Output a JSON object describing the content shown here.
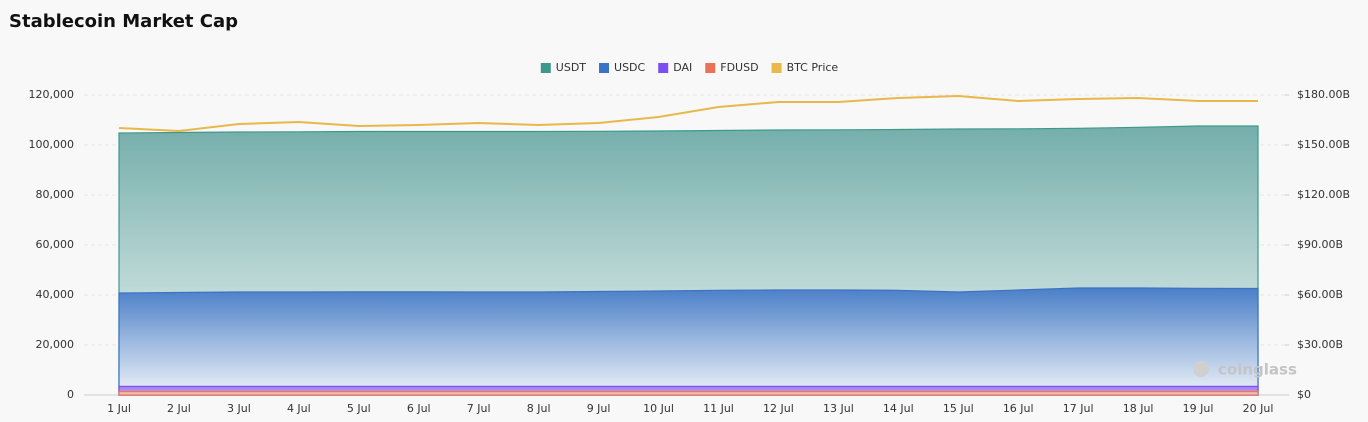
{
  "chart_data": {
    "type": "area",
    "title": "Stablecoin Market Cap",
    "watermark": "coinglass",
    "categories": [
      "1 Jul",
      "2 Jul",
      "3 Jul",
      "4 Jul",
      "5 Jul",
      "6 Jul",
      "7 Jul",
      "8 Jul",
      "9 Jul",
      "10 Jul",
      "11 Jul",
      "12 Jul",
      "13 Jul",
      "14 Jul",
      "15 Jul",
      "16 Jul",
      "17 Jul",
      "18 Jul",
      "19 Jul",
      "20 Jul"
    ],
    "series": [
      {
        "name": "USDT",
        "color": "#3d9a8b",
        "values": [
          104800,
          105000,
          105200,
          105300,
          105400,
          105400,
          105400,
          105400,
          105500,
          105600,
          105800,
          106000,
          106100,
          106200,
          106400,
          106500,
          106700,
          107100,
          107600,
          107600
        ]
      },
      {
        "name": "USDC",
        "color": "#3b73c4",
        "values": [
          40800,
          41000,
          41200,
          41200,
          41300,
          41300,
          41200,
          41200,
          41400,
          41600,
          41900,
          42000,
          42000,
          41900,
          41200,
          42000,
          42800,
          42800,
          42700,
          42600
        ]
      },
      {
        "name": "DAI",
        "color": "#7b4ff0",
        "values": [
          3500,
          3500,
          3500,
          3500,
          3500,
          3500,
          3500,
          3500,
          3500,
          3500,
          3500,
          3500,
          3500,
          3500,
          3500,
          3500,
          3500,
          3500,
          3500,
          3500
        ]
      },
      {
        "name": "FDUSD",
        "color": "#e8735a",
        "values": [
          1500,
          1500,
          1500,
          1500,
          1500,
          1500,
          1500,
          1500,
          1500,
          1500,
          1500,
          1500,
          1500,
          1500,
          1500,
          1500,
          1500,
          1500,
          1500,
          1500
        ]
      },
      {
        "name": "BTC Price",
        "color": "#e8b84a",
        "axis": "y2",
        "values": [
          160200000000,
          158400000000,
          162600000000,
          163800000000,
          161400000000,
          162000000000,
          163200000000,
          162000000000,
          163200000000,
          166800000000,
          172800000000,
          175800000000,
          175800000000,
          178200000000,
          179400000000,
          176400000000,
          177600000000,
          178200000000,
          176400000000,
          176400000000
        ]
      }
    ],
    "ylim": [
      0,
      120000
    ],
    "yticks": [
      0,
      {
        "value": 20000,
        "label": "20,000"
      },
      {
        "value": 40000,
        "label": "40,000"
      },
      {
        "value": 60000,
        "label": "60,000"
      },
      {
        "value": 80000,
        "label": "80,000"
      },
      {
        "value": 100000,
        "label": "100,000"
      },
      {
        "value": 120000,
        "label": "120,000"
      }
    ],
    "y2lim": [
      0,
      180000000000
    ],
    "y2ticks": [
      {
        "value": 0,
        "label": "$0"
      },
      {
        "value": 30000000000,
        "label": "$30.00B"
      },
      {
        "value": 60000000000,
        "label": "$60.00B"
      },
      {
        "value": 90000000000,
        "label": "$90.00B"
      },
      {
        "value": 120000000000,
        "label": "$120.00B"
      },
      {
        "value": 150000000000,
        "label": "$150.00B"
      },
      {
        "value": 180000000000,
        "label": "$180.00B"
      }
    ],
    "grid": true,
    "legend": "top"
  }
}
